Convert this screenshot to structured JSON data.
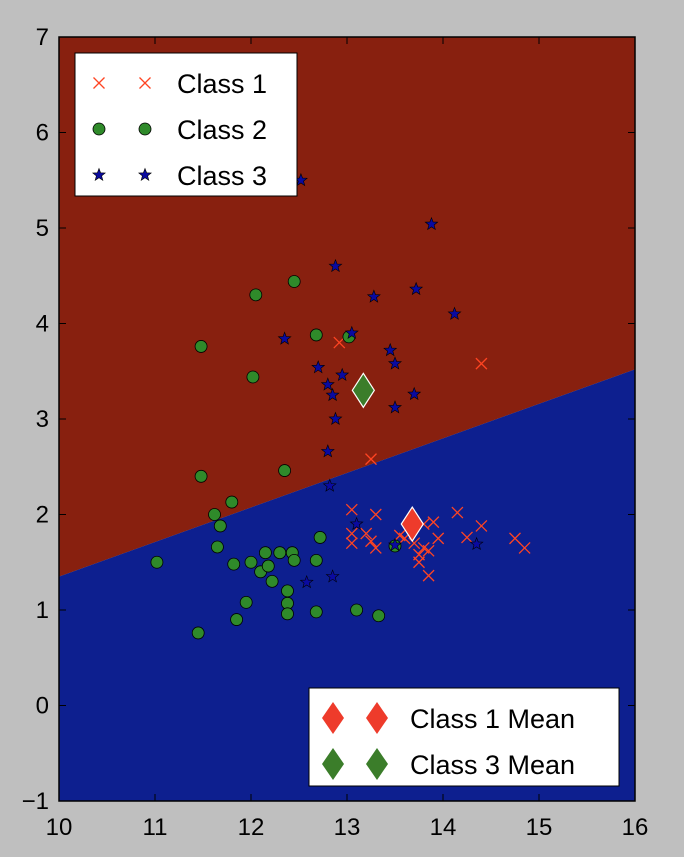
{
  "chart_data": {
    "type": "scatter",
    "title": "",
    "xlabel": "",
    "ylabel": "",
    "xlim": [
      10,
      16
    ],
    "ylim": [
      -1,
      7
    ],
    "xticks": [
      "10",
      "11",
      "12",
      "13",
      "14",
      "15",
      "16"
    ],
    "yticks": [
      "−1",
      "0",
      "1",
      "2",
      "3",
      "4",
      "5",
      "6",
      "7"
    ],
    "decision_boundary": {
      "x": [
        10,
        16
      ],
      "y": [
        1.35,
        3.52
      ]
    },
    "regions": [
      {
        "side": "above",
        "color": "#88200f"
      },
      {
        "side": "below",
        "color": "#0d1f8f"
      }
    ],
    "legend_top": {
      "position": "top-left",
      "entries": [
        {
          "label": "Class 1",
          "marker": "x",
          "color": "#ff4422"
        },
        {
          "label": "Class 2",
          "marker": "circle",
          "color": "#2f8a2a"
        },
        {
          "label": "Class 3",
          "marker": "star",
          "color": "#0a0aa0"
        }
      ]
    },
    "legend_bottom": {
      "position": "bottom-right",
      "entries": [
        {
          "label": "Class 1 Mean",
          "marker": "diamond",
          "color": "#ee3b2b"
        },
        {
          "label": "Class 3 Mean",
          "marker": "diamond",
          "color": "#3b7d2a"
        }
      ]
    },
    "series": [
      {
        "marker": "x",
        "color": "#ff4422",
        "points": [
          [
            12.92,
            3.8
          ],
          [
            13.25,
            2.58
          ],
          [
            14.4,
            3.58
          ],
          [
            13.05,
            2.05
          ],
          [
            13.3,
            2.0
          ],
          [
            13.05,
            1.8
          ],
          [
            13.05,
            1.7
          ],
          [
            13.2,
            1.8
          ],
          [
            13.25,
            1.72
          ],
          [
            13.3,
            1.65
          ],
          [
            13.55,
            1.78
          ],
          [
            13.6,
            1.75
          ],
          [
            13.7,
            1.7
          ],
          [
            13.75,
            1.58
          ],
          [
            13.75,
            1.5
          ],
          [
            13.8,
            1.65
          ],
          [
            13.8,
            1.9
          ],
          [
            13.85,
            1.62
          ],
          [
            13.85,
            1.36
          ],
          [
            13.9,
            1.92
          ],
          [
            13.95,
            1.75
          ],
          [
            14.15,
            2.02
          ],
          [
            14.25,
            1.76
          ],
          [
            14.4,
            1.88
          ],
          [
            14.75,
            1.75
          ],
          [
            14.85,
            1.65
          ]
        ]
      },
      {
        "marker": "circle",
        "color": "#2f8a2a",
        "points": [
          [
            11.02,
            1.5
          ],
          [
            11.45,
            0.76
          ],
          [
            11.48,
            3.76
          ],
          [
            11.48,
            2.4
          ],
          [
            11.62,
            2.0
          ],
          [
            11.68,
            1.88
          ],
          [
            11.65,
            1.66
          ],
          [
            11.8,
            2.13
          ],
          [
            11.82,
            1.48
          ],
          [
            11.85,
            0.9
          ],
          [
            11.95,
            1.08
          ],
          [
            12.0,
            1.5
          ],
          [
            12.02,
            3.44
          ],
          [
            12.05,
            4.3
          ],
          [
            12.1,
            1.4
          ],
          [
            12.15,
            1.6
          ],
          [
            12.18,
            1.46
          ],
          [
            12.22,
            1.3
          ],
          [
            12.3,
            1.6
          ],
          [
            12.35,
            2.46
          ],
          [
            12.38,
            1.2
          ],
          [
            12.38,
            1.07
          ],
          [
            12.38,
            0.96
          ],
          [
            12.43,
            1.6
          ],
          [
            12.45,
            4.44
          ],
          [
            12.45,
            1.52
          ],
          [
            12.68,
            3.88
          ],
          [
            12.68,
            1.52
          ],
          [
            12.68,
            0.98
          ],
          [
            12.72,
            1.76
          ],
          [
            13.02,
            3.86
          ],
          [
            13.1,
            1.0
          ],
          [
            13.33,
            0.94
          ],
          [
            13.5,
            1.67
          ]
        ]
      },
      {
        "marker": "star",
        "color": "#0a0aa0",
        "points": [
          [
            12.52,
            5.5
          ],
          [
            13.88,
            5.04
          ],
          [
            12.88,
            4.6
          ],
          [
            13.28,
            4.28
          ],
          [
            13.72,
            4.36
          ],
          [
            14.12,
            4.1
          ],
          [
            13.05,
            3.9
          ],
          [
            12.35,
            3.84
          ],
          [
            13.45,
            3.72
          ],
          [
            13.5,
            3.58
          ],
          [
            12.7,
            3.54
          ],
          [
            12.95,
            3.46
          ],
          [
            12.8,
            3.36
          ],
          [
            12.85,
            3.25
          ],
          [
            13.7,
            3.26
          ],
          [
            13.5,
            3.12
          ],
          [
            12.88,
            3.0
          ],
          [
            12.8,
            2.66
          ],
          [
            12.82,
            2.3
          ],
          [
            13.1,
            1.9
          ],
          [
            13.5,
            1.68
          ],
          [
            14.35,
            1.69
          ],
          [
            12.58,
            1.29
          ],
          [
            12.85,
            1.35
          ]
        ]
      }
    ],
    "means": [
      {
        "label": "Class 1 Mean",
        "color": "#ee3b2b",
        "x": 13.68,
        "y": 1.9
      },
      {
        "label": "Class 3 Mean",
        "color": "#3b7d2a",
        "x": 13.17,
        "y": 3.3
      }
    ]
  }
}
